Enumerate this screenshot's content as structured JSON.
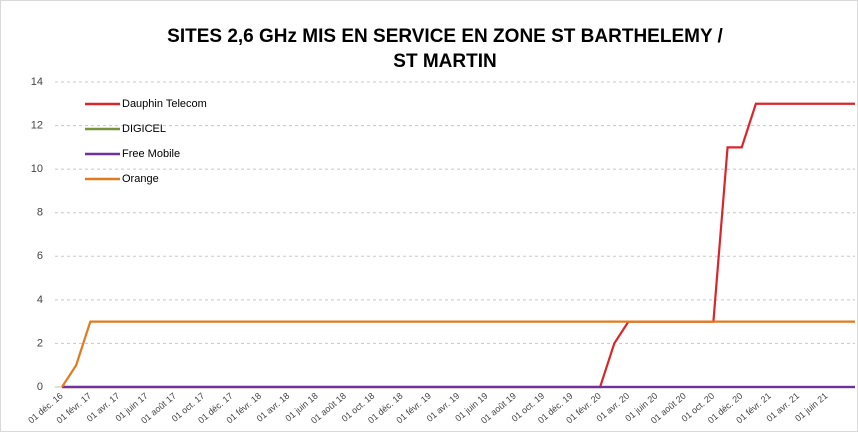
{
  "chart_data": {
    "type": "line",
    "title": [
      "SITES 2,6 GHz MIS EN SERVICE  EN ZONE ST BARTHELEMY /",
      "ST MARTIN"
    ],
    "categories": [
      "01 déc. 16",
      null,
      "01 févr. 17",
      null,
      "01 avr. 17",
      null,
      "01 juin 17",
      null,
      "01 août 17",
      null,
      "01 oct. 17",
      null,
      "01 déc. 17",
      null,
      "01 févr. 18",
      null,
      "01 avr. 18",
      null,
      "01 juin 18",
      null,
      "01 août 18",
      null,
      "01 oct. 18",
      null,
      "01 déc. 18",
      null,
      "01 févr. 19",
      null,
      "01 avr. 19",
      null,
      "01 juin 19",
      null,
      "01 août 19",
      null,
      "01 oct. 19",
      null,
      "01 déc. 19",
      null,
      "01 févr. 20",
      null,
      "01 avr. 20",
      null,
      "01 juin 20",
      null,
      "01 août 20",
      null,
      "01 oct. 20",
      null,
      "01 déc. 20",
      null,
      "01 févr. 21",
      null,
      "01 avr. 21",
      null,
      "01 juin 21",
      null,
      null
    ],
    "series": [
      {
        "name": "Dauphin Telecom",
        "color": "#d9262b",
        "values": [
          0,
          0,
          0,
          0,
          0,
          0,
          0,
          0,
          0,
          0,
          0,
          0,
          0,
          0,
          0,
          0,
          0,
          0,
          0,
          0,
          0,
          0,
          0,
          0,
          0,
          0,
          0,
          0,
          0,
          0,
          0,
          0,
          0,
          0,
          0,
          0,
          0,
          0,
          0,
          2,
          3,
          3,
          3,
          3,
          3,
          3,
          3,
          11,
          11,
          13,
          13,
          13,
          13,
          13,
          13,
          13,
          13
        ]
      },
      {
        "name": "DIGICEL",
        "color": "#77933c",
        "values": [
          0,
          0,
          0,
          0,
          0,
          0,
          0,
          0,
          0,
          0,
          0,
          0,
          0,
          0,
          0,
          0,
          0,
          0,
          0,
          0,
          0,
          0,
          0,
          0,
          0,
          0,
          0,
          0,
          0,
          0,
          0,
          0,
          0,
          0,
          0,
          0,
          0,
          0,
          0,
          0,
          0,
          0,
          0,
          0,
          0,
          0,
          0,
          0,
          0,
          0,
          0,
          0,
          0,
          0,
          0,
          0,
          0
        ]
      },
      {
        "name": "Free Mobile",
        "color": "#7030a0",
        "values": [
          0,
          0,
          0,
          0,
          0,
          0,
          0,
          0,
          0,
          0,
          0,
          0,
          0,
          0,
          0,
          0,
          0,
          0,
          0,
          0,
          0,
          0,
          0,
          0,
          0,
          0,
          0,
          0,
          0,
          0,
          0,
          0,
          0,
          0,
          0,
          0,
          0,
          0,
          0,
          0,
          0,
          0,
          0,
          0,
          0,
          0,
          0,
          0,
          0,
          0,
          0,
          0,
          0,
          0,
          0,
          0,
          0
        ]
      },
      {
        "name": "Orange",
        "color": "#e07b1f",
        "values": [
          0,
          1,
          3,
          3,
          3,
          3,
          3,
          3,
          3,
          3,
          3,
          3,
          3,
          3,
          3,
          3,
          3,
          3,
          3,
          3,
          3,
          3,
          3,
          3,
          3,
          3,
          3,
          3,
          3,
          3,
          3,
          3,
          3,
          3,
          3,
          3,
          3,
          3,
          3,
          3,
          3,
          3,
          3,
          3,
          3,
          3,
          3,
          3,
          3,
          3,
          3,
          3,
          3,
          3,
          3,
          3,
          3
        ]
      }
    ],
    "ylim": [
      0,
      14
    ],
    "yticks": [
      0,
      2,
      4,
      6,
      8,
      10,
      12,
      14
    ],
    "grid": true,
    "legend": "top-left"
  }
}
